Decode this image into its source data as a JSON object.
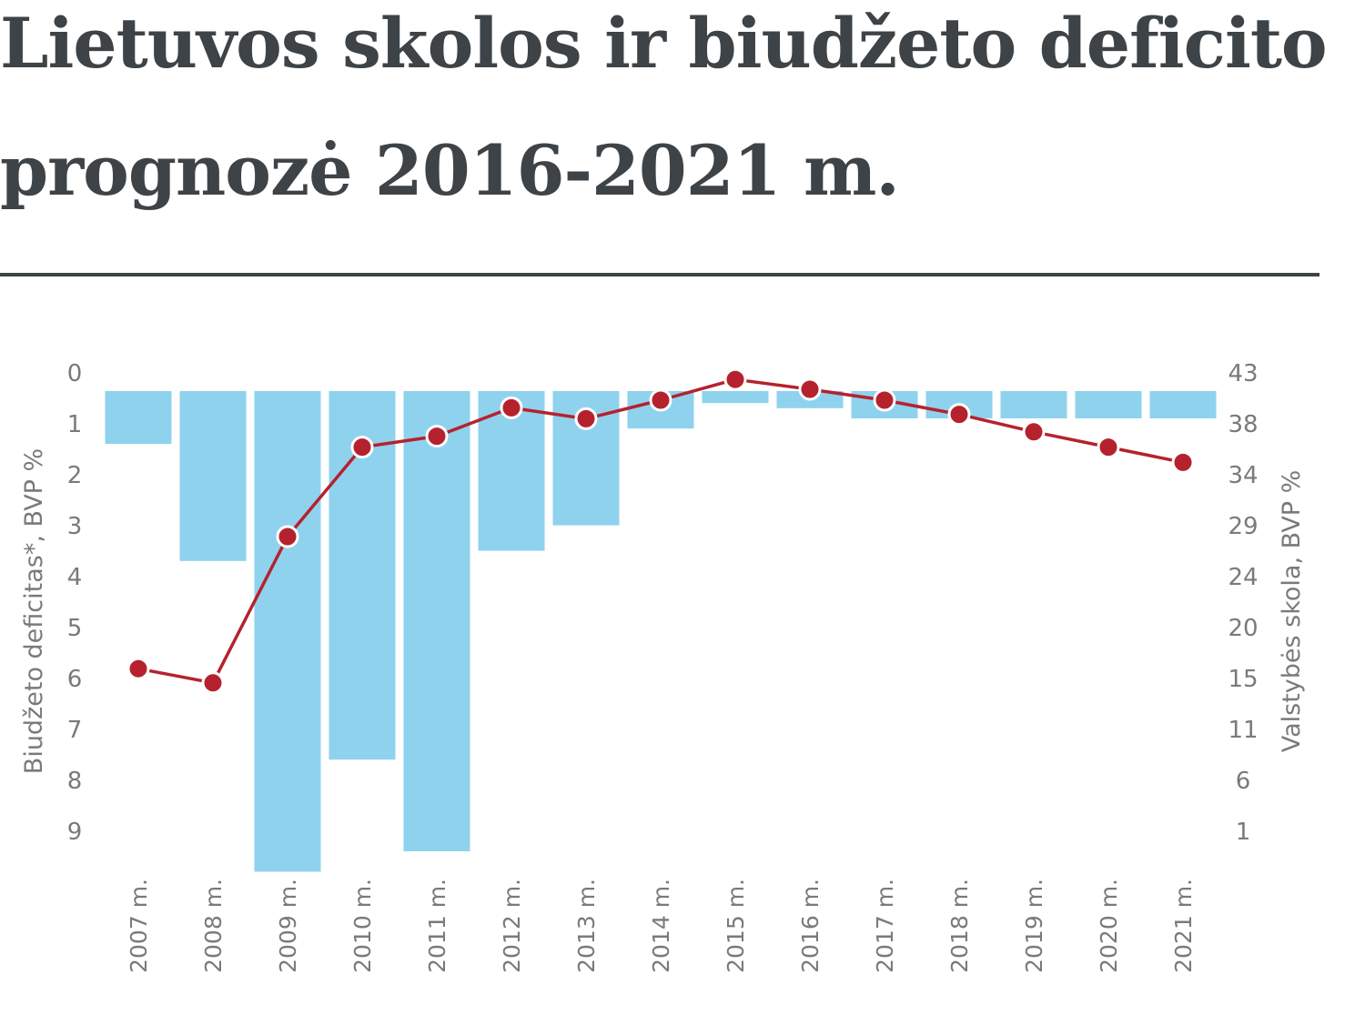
{
  "title": {
    "line1": "Lietuvos skolos ir biudžeto deficito",
    "line2": "prognozė 2016-2021 m."
  },
  "colors": {
    "title": "#3d4347",
    "bars": "#8fd2ee",
    "line": "#b5222e",
    "ticks": "#7a7a7a"
  },
  "chart_data": {
    "type": "bar+line",
    "categories": [
      "2007 m.",
      "2008 m.",
      "2009 m.",
      "2010 m.",
      "2011 m.",
      "2012 m.",
      "2013 m.",
      "2014 m.",
      "2015 m.",
      "2016 m.",
      "2017 m.",
      "2018 m.",
      "2019 m.",
      "2020 m.",
      "2021 m."
    ],
    "left_axis": {
      "label": "Biudžeto deficitas*, BVP %",
      "ticks": [
        "0",
        "1",
        "2",
        "3",
        "4",
        "5",
        "6",
        "7",
        "8",
        "9"
      ],
      "range": [
        0,
        9
      ],
      "inverted": true
    },
    "right_axis": {
      "label": "Valstybės skola, BVP %",
      "ticks": [
        "43",
        "38",
        "34",
        "29",
        "24",
        "20",
        "15",
        "11",
        "6",
        "1"
      ],
      "range": [
        43,
        1
      ]
    },
    "series": [
      {
        "kind": "bar",
        "axis": "left",
        "values": [
          1.0,
          3.3,
          9.4,
          7.2,
          9.0,
          3.1,
          2.6,
          0.7,
          0.2,
          0.3,
          0.5,
          0.5,
          0.5,
          0.5,
          0.5
        ]
      },
      {
        "kind": "line",
        "axis": "right",
        "values": [
          15.9,
          14.6,
          28.0,
          36.2,
          37.2,
          39.8,
          38.8,
          40.5,
          42.4,
          41.5,
          40.5,
          39.2,
          37.6,
          36.2,
          34.8
        ]
      }
    ]
  }
}
